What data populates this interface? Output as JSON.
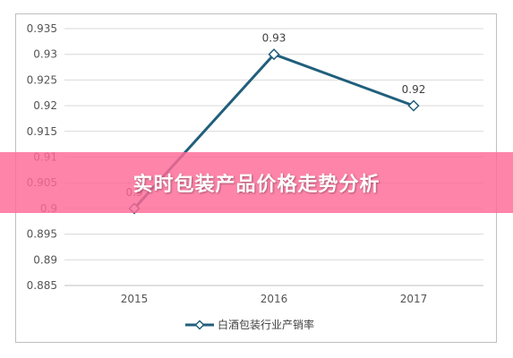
{
  "banner": {
    "title": "实时包装产品价格走势分析",
    "background": "#ff6996"
  },
  "chart_data": {
    "type": "line",
    "categories": [
      "2015",
      "2016",
      "2017"
    ],
    "series": [
      {
        "name": "白酒包装行业产销率",
        "values": [
          0.9,
          0.93,
          0.92
        ],
        "data_labels": [
          "0.9",
          "0.93",
          "0.92"
        ],
        "color": "#215f7c",
        "marker": "diamond"
      }
    ],
    "y_ticks": [
      "0.885",
      "0.89",
      "0.895",
      "0.9",
      "0.905",
      "0.91",
      "0.915",
      "0.92",
      "0.925",
      "0.93",
      "0.935"
    ],
    "ylim": [
      0.885,
      0.935
    ],
    "grid": true,
    "legend_position": "bottom"
  }
}
